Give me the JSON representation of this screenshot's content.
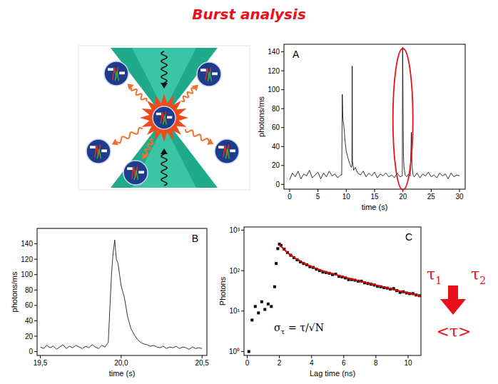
{
  "title": "Burst analysis",
  "chart_data": [
    {
      "type": "line",
      "panel_label": "A",
      "x_label": "time (s)",
      "y_label": "photons/ms",
      "color": "#000000",
      "xlim": [
        -1,
        31
      ],
      "xticks": [
        0,
        5,
        10,
        15,
        20,
        25,
        30
      ],
      "ylim": [
        -5,
        148
      ],
      "yticks": [
        0,
        20,
        40,
        60,
        80,
        100,
        120,
        140
      ],
      "x": [
        0,
        0.5,
        1,
        1.5,
        2,
        2.5,
        3,
        3.5,
        4,
        4.5,
        5,
        5.5,
        6,
        6.5,
        7,
        7.5,
        8,
        8.5,
        9,
        9.2,
        9.3,
        9.4,
        9.6,
        9.8,
        10,
        10.3,
        10.6,
        10.9,
        11,
        11.05,
        11.1,
        11.3,
        11.6,
        12,
        12.5,
        13,
        13.5,
        14,
        14.5,
        15,
        15.5,
        16,
        16.5,
        17,
        17.5,
        18,
        18.5,
        19,
        19.5,
        19.9,
        19.95,
        20,
        20.05,
        20.1,
        20.2,
        20.4,
        20.7,
        21,
        21.3,
        21.5,
        21.6,
        21.8,
        22,
        22.5,
        23,
        23.5,
        24,
        24.5,
        25,
        25.5,
        26,
        26.5,
        27,
        27.5,
        28,
        28.5,
        29,
        29.5,
        30
      ],
      "values": [
        5,
        12,
        8,
        14,
        6,
        11,
        9,
        15,
        7,
        10,
        13,
        6,
        12,
        8,
        14,
        9,
        11,
        7,
        10,
        10,
        95,
        70,
        60,
        45,
        35,
        28,
        22,
        18,
        20,
        125,
        25,
        15,
        18,
        12,
        10,
        14,
        8,
        12,
        9,
        13,
        7,
        11,
        9,
        12,
        8,
        10,
        7,
        12,
        8,
        9,
        145,
        110,
        60,
        30,
        18,
        10,
        8,
        11,
        9,
        55,
        20,
        10,
        8,
        12,
        7,
        11,
        9,
        13,
        8,
        10,
        7,
        12,
        9,
        11,
        6,
        12,
        8,
        10,
        9
      ]
    },
    {
      "type": "line",
      "panel_label": "B",
      "x_label": "time (s)",
      "y_label": "photons/ms",
      "color": "#000000",
      "xlim": [
        19.48,
        20.53
      ],
      "xticks": [
        {
          "value": 19.5,
          "label": "19,5"
        },
        {
          "value": 20,
          "label": "20,0"
        },
        {
          "value": 20.5,
          "label": "20,5"
        }
      ],
      "ylim": [
        -5,
        160
      ],
      "yticks": [
        0,
        20,
        40,
        60,
        80,
        100,
        120,
        140
      ],
      "x": [
        19.5,
        19.52,
        19.54,
        19.56,
        19.58,
        19.6,
        19.62,
        19.64,
        19.66,
        19.68,
        19.7,
        19.72,
        19.74,
        19.76,
        19.78,
        19.8,
        19.82,
        19.84,
        19.86,
        19.88,
        19.9,
        19.92,
        19.94,
        19.95,
        19.96,
        19.97,
        19.98,
        19.99,
        20,
        20.02,
        20.04,
        20.06,
        20.08,
        20.1,
        20.12,
        20.14,
        20.16,
        20.18,
        20.2,
        20.22,
        20.24,
        20.26,
        20.28,
        20.3,
        20.32,
        20.34,
        20.36,
        20.38,
        20.4,
        20.42,
        20.44,
        20.46,
        20.48,
        20.5
      ],
      "values": [
        6,
        4,
        8,
        5,
        7,
        3,
        6,
        9,
        4,
        7,
        5,
        8,
        6,
        4,
        7,
        5,
        9,
        6,
        4,
        8,
        6,
        12,
        100,
        128,
        145,
        120,
        115,
        100,
        85,
        70,
        45,
        30,
        22,
        16,
        12,
        10,
        9,
        7,
        8,
        6,
        5,
        7,
        4,
        6,
        5,
        7,
        4,
        6,
        5,
        3,
        6,
        4,
        5,
        4
      ]
    },
    {
      "type": "scatter",
      "panel_label": "C",
      "x_label": "Lag time (ns)",
      "y_label": "Photons",
      "log": "y",
      "annotation": [
        "σ",
        "τ",
        "= τ/√N"
      ],
      "xlim": [
        -0.2,
        10.8
      ],
      "xticks": [
        0,
        2,
        4,
        6,
        8,
        10
      ],
      "ylim": [
        0.8,
        1200
      ],
      "yticks": [
        {
          "value": 1,
          "label": "10⁰"
        },
        {
          "value": 10,
          "label": "10¹"
        },
        {
          "value": 100,
          "label": "10²"
        },
        {
          "value": 1000,
          "label": "10³"
        }
      ],
      "series": [
        {
          "type": "scatter",
          "marker": "square",
          "color": "#000000",
          "x": [
            0.1,
            0.3,
            0.5,
            0.7,
            0.9,
            1.1,
            1.3,
            1.5,
            1.7,
            1.8,
            1.9,
            2.0,
            2.1,
            2.3,
            2.5,
            2.7,
            2.9,
            3.1,
            3.3,
            3.5,
            3.7,
            3.9,
            4.1,
            4.3,
            4.5,
            4.7,
            4.9,
            5.1,
            5.3,
            5.5,
            5.7,
            5.9,
            6.1,
            6.3,
            6.5,
            6.7,
            6.9,
            7.1,
            7.3,
            7.5,
            7.7,
            7.9,
            8.1,
            8.3,
            8.5,
            8.7,
            8.9,
            9.1,
            9.3,
            9.5,
            9.7,
            9.9,
            10.1,
            10.3,
            10.5,
            10.7,
            10.9
          ],
          "values": [
            1,
            6,
            13,
            9,
            17,
            11,
            15,
            13,
            40,
            150,
            350,
            450,
            420,
            340,
            280,
            240,
            210,
            185,
            165,
            150,
            140,
            125,
            120,
            108,
            100,
            92,
            90,
            86,
            80,
            82,
            72,
            70,
            66,
            60,
            60,
            58,
            55,
            55,
            50,
            48,
            46,
            44,
            41,
            40,
            38,
            37,
            35,
            36,
            32,
            29,
            30,
            28,
            27,
            27,
            25,
            24,
            23
          ]
        },
        {
          "type": "line",
          "line_style": "solid",
          "color": "#e00000",
          "x": [
            2,
            2.3,
            2.6,
            3,
            3.5,
            4,
            4.5,
            5,
            5.5,
            6,
            6.5,
            7,
            7.5,
            8,
            8.5,
            9,
            9.5,
            10,
            10.5,
            10.8
          ],
          "values": [
            440,
            330,
            260,
            200,
            155,
            125,
            105,
            90,
            80,
            70,
            62,
            55,
            49,
            44,
            39,
            35,
            31,
            28,
            25,
            23
          ]
        }
      ]
    }
  ],
  "side_note": {
    "lifetimes": [
      {
        "symbol": "τ",
        "subscript": "1"
      },
      {
        "symbol": "τ",
        "subscript": "2"
      }
    ],
    "average": "<τ>"
  }
}
